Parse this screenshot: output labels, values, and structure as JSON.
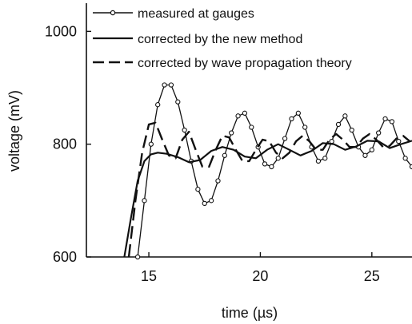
{
  "chart_data": {
    "type": "line",
    "xlabel": "time (µs)",
    "ylabel": "voltage (mV)",
    "xlim": [
      12.2,
      26.8
    ],
    "ylim": [
      600,
      1050
    ],
    "xticks": [
      15,
      20,
      25
    ],
    "yticks": [
      600,
      800,
      1000
    ],
    "xtick_labels": [
      "15",
      "20",
      "25"
    ],
    "ytick_labels": [
      "600",
      "800",
      "1000"
    ],
    "grid": false,
    "legend_position": "top-left",
    "series": [
      {
        "name": "measured at gauges",
        "style": "line with open circle markers",
        "color": "#111111",
        "x": [
          14.5,
          14.8,
          15.1,
          15.4,
          15.7,
          16.0,
          16.3,
          16.6,
          16.9,
          17.2,
          17.5,
          17.8,
          18.1,
          18.4,
          18.7,
          19.0,
          19.3,
          19.6,
          19.9,
          20.2,
          20.5,
          20.8,
          21.1,
          21.4,
          21.7,
          22.0,
          22.3,
          22.6,
          22.9,
          23.2,
          23.5,
          23.8,
          24.1,
          24.4,
          24.7,
          25.0,
          25.3,
          25.6,
          25.9,
          26.2,
          26.5,
          26.8
        ],
        "y": [
          600,
          700,
          800,
          870,
          905,
          905,
          875,
          825,
          770,
          720,
          695,
          700,
          735,
          780,
          820,
          850,
          855,
          830,
          795,
          765,
          760,
          775,
          810,
          845,
          855,
          830,
          795,
          770,
          775,
          805,
          835,
          850,
          825,
          795,
          780,
          790,
          820,
          845,
          840,
          805,
          775,
          760
        ]
      },
      {
        "name": "corrected by the new method",
        "style": "solid line",
        "color": "#111111",
        "x": [
          13.9,
          14.2,
          14.5,
          14.8,
          15.1,
          15.4,
          15.8,
          16.3,
          16.8,
          17.3,
          17.8,
          18.3,
          18.8,
          19.3,
          19.8,
          20.3,
          20.8,
          21.3,
          21.8,
          22.3,
          22.8,
          23.3,
          23.8,
          24.3,
          24.8,
          25.3,
          25.8,
          26.3,
          26.8
        ],
        "y": [
          600,
          670,
          735,
          770,
          782,
          785,
          783,
          777,
          768,
          772,
          788,
          795,
          790,
          778,
          775,
          790,
          800,
          790,
          780,
          788,
          802,
          800,
          790,
          796,
          806,
          805,
          793,
          800,
          806
        ]
      },
      {
        "name": "corrected by wave propagation theory",
        "style": "long-dash line",
        "color": "#111111",
        "x": [
          14.1,
          14.4,
          14.7,
          15.0,
          15.3,
          15.6,
          15.9,
          16.2,
          16.5,
          16.8,
          17.1,
          17.4,
          17.7,
          18.0,
          18.3,
          18.6,
          18.9,
          19.2,
          19.5,
          19.8,
          20.1,
          20.4,
          20.7,
          21.0,
          21.3,
          21.6,
          21.9,
          22.2,
          22.5,
          22.8,
          23.1,
          23.4,
          23.7,
          24.0,
          24.3,
          24.6,
          24.9,
          25.2,
          25.5,
          25.8,
          26.1,
          26.4,
          26.7
        ],
        "y": [
          600,
          700,
          785,
          835,
          838,
          808,
          780,
          775,
          808,
          822,
          790,
          760,
          760,
          790,
          815,
          812,
          790,
          770,
          770,
          790,
          808,
          805,
          785,
          775,
          785,
          805,
          815,
          805,
          790,
          790,
          808,
          818,
          808,
          795,
          795,
          810,
          818,
          808,
          795,
          797,
          810,
          815,
          805
        ]
      }
    ]
  }
}
